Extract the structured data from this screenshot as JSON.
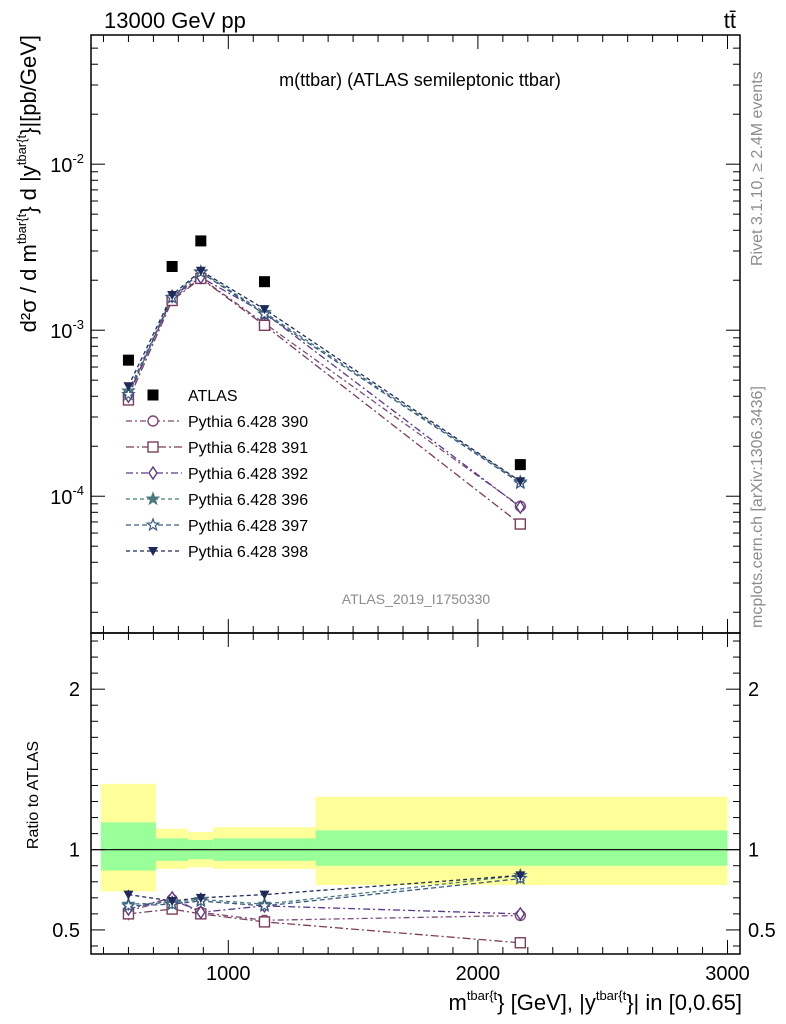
{
  "header": {
    "left": "13000 GeV pp",
    "right": "tt̄"
  },
  "side_labels": {
    "rivet": "Rivet 3.1.10, ≥ 2.4M events",
    "mcplots": "mcplots.cern.ch [arXiv:1306.3436]"
  },
  "chart_data": [
    {
      "type": "line",
      "title": "m(ttbar) (ATLAS semileptonic ttbar)",
      "watermark": "ATLAS_2019_I1750330",
      "ylabel": {
        "main": "d²σ / d m",
        "sup1": "tbar{t",
        "mid": "} d |y",
        "sup2": "tbar{t",
        "end": "}|[pb/GeV]"
      },
      "yscale": "log",
      "ylim": [
        1.5e-05,
        0.06
      ],
      "xlim": [
        450,
        3050
      ],
      "yticks": [
        {
          "value": 0.0001,
          "base": "10",
          "exp": "-4"
        },
        {
          "value": 0.001,
          "base": "10",
          "exp": "-3"
        },
        {
          "value": 0.01,
          "base": "10",
          "exp": "-2"
        }
      ],
      "legend_position": "lower-left",
      "data": {
        "name": "ATLAS",
        "x": [
          600,
          775,
          890,
          1145,
          2170
        ],
        "y": [
          0.00066,
          0.00242,
          0.00345,
          0.00196,
          0.000155
        ]
      },
      "series": [
        {
          "name": "Pythia 6.428 390",
          "marker": "circle-open",
          "color": "#7a4a78",
          "dash": "6,3,2,3",
          "x": [
            600,
            775,
            890,
            1145,
            2170
          ],
          "y": [
            0.00041,
            0.00155,
            0.00206,
            0.0011,
            8.7e-05
          ]
        },
        {
          "name": "Pythia 6.428 391",
          "marker": "square-open",
          "color": "#7a3e5a",
          "dash": "8,3,2,3",
          "x": [
            600,
            775,
            890,
            1145,
            2170
          ],
          "y": [
            0.00038,
            0.00151,
            0.00205,
            0.00107,
            6.8e-05
          ]
        },
        {
          "name": "Pythia 6.428 392",
          "marker": "diamond-open",
          "color": "#5a3a8a",
          "dash": "7,3,2,3",
          "x": [
            600,
            775,
            890,
            1145,
            2170
          ],
          "y": [
            0.0004,
            0.0016,
            0.00208,
            0.00127,
            8.6e-05
          ]
        },
        {
          "name": "Pythia 6.428 396",
          "marker": "star-filled",
          "color": "#4a7a80",
          "dash": "4,3",
          "x": [
            600,
            775,
            890,
            1145,
            2170
          ],
          "y": [
            0.00043,
            0.00158,
            0.00225,
            0.00128,
            0.000122
          ]
        },
        {
          "name": "Pythia 6.428 397",
          "marker": "star-open",
          "color": "#3a5a80",
          "dash": "5,3",
          "x": [
            600,
            775,
            890,
            1145,
            2170
          ],
          "y": [
            0.00041,
            0.00157,
            0.00223,
            0.00125,
            0.00012
          ]
        },
        {
          "name": "Pythia 6.428 398",
          "marker": "triangle-down-filled",
          "color": "#1f2a5a",
          "dash": "4,3",
          "x": [
            600,
            775,
            890,
            1145,
            2170
          ],
          "y": [
            0.00046,
            0.00163,
            0.00228,
            0.00134,
            0.000123
          ]
        }
      ]
    },
    {
      "type": "line",
      "ylabel": "Ratio to ATLAS",
      "xlabel": {
        "main": "m",
        "sup1": "tbar{t",
        "mid": "} [GeV], |y",
        "sup2": "tbar{t",
        "end": "}| in [0,0.65]"
      },
      "xlim": [
        450,
        3050
      ],
      "ylim": [
        0.35,
        2.35
      ],
      "xticks": [
        1000,
        2000,
        3000
      ],
      "yticks": [
        0.5,
        1,
        2
      ],
      "bands": [
        {
          "x0": 490,
          "x1": 710,
          "yellow": [
            0.74,
            1.41
          ],
          "green": [
            0.87,
            1.17
          ]
        },
        {
          "x0": 710,
          "x1": 840,
          "yellow": [
            0.88,
            1.13
          ],
          "green": [
            0.93,
            1.07
          ]
        },
        {
          "x0": 840,
          "x1": 940,
          "yellow": [
            0.89,
            1.11
          ],
          "green": [
            0.94,
            1.06
          ]
        },
        {
          "x0": 940,
          "x1": 1350,
          "yellow": [
            0.88,
            1.14
          ],
          "green": [
            0.93,
            1.07
          ]
        },
        {
          "x0": 1350,
          "x1": 3000,
          "yellow": [
            0.78,
            1.33
          ],
          "green": [
            0.9,
            1.12
          ]
        }
      ],
      "series": [
        {
          "name": "Pythia 6.428 390",
          "y": [
            0.62,
            0.69,
            0.61,
            0.56,
            0.59
          ],
          "err": [
            0.03,
            0.03,
            0.03,
            0.02,
            0.03
          ]
        },
        {
          "name": "Pythia 6.428 391",
          "y": [
            0.6,
            0.63,
            0.6,
            0.55,
            0.42
          ],
          "err": [
            0.04,
            0.03,
            0.03,
            0.02,
            0.03
          ]
        },
        {
          "name": "Pythia 6.428 392",
          "y": [
            0.63,
            0.7,
            0.61,
            0.65,
            0.6
          ],
          "err": [
            0.03,
            0.03,
            0.03,
            0.02,
            0.03
          ]
        },
        {
          "name": "Pythia 6.428 396",
          "y": [
            0.66,
            0.67,
            0.69,
            0.66,
            0.84
          ],
          "err": [
            0.03,
            0.03,
            0.03,
            0.02,
            0.03
          ]
        },
        {
          "name": "Pythia 6.428 397",
          "y": [
            0.65,
            0.66,
            0.68,
            0.65,
            0.82
          ],
          "err": [
            0.03,
            0.03,
            0.03,
            0.02,
            0.03
          ]
        },
        {
          "name": "Pythia 6.428 398",
          "y": [
            0.72,
            0.68,
            0.7,
            0.72,
            0.84
          ],
          "err": [
            0.03,
            0.03,
            0.03,
            0.02,
            0.03
          ]
        }
      ]
    }
  ]
}
